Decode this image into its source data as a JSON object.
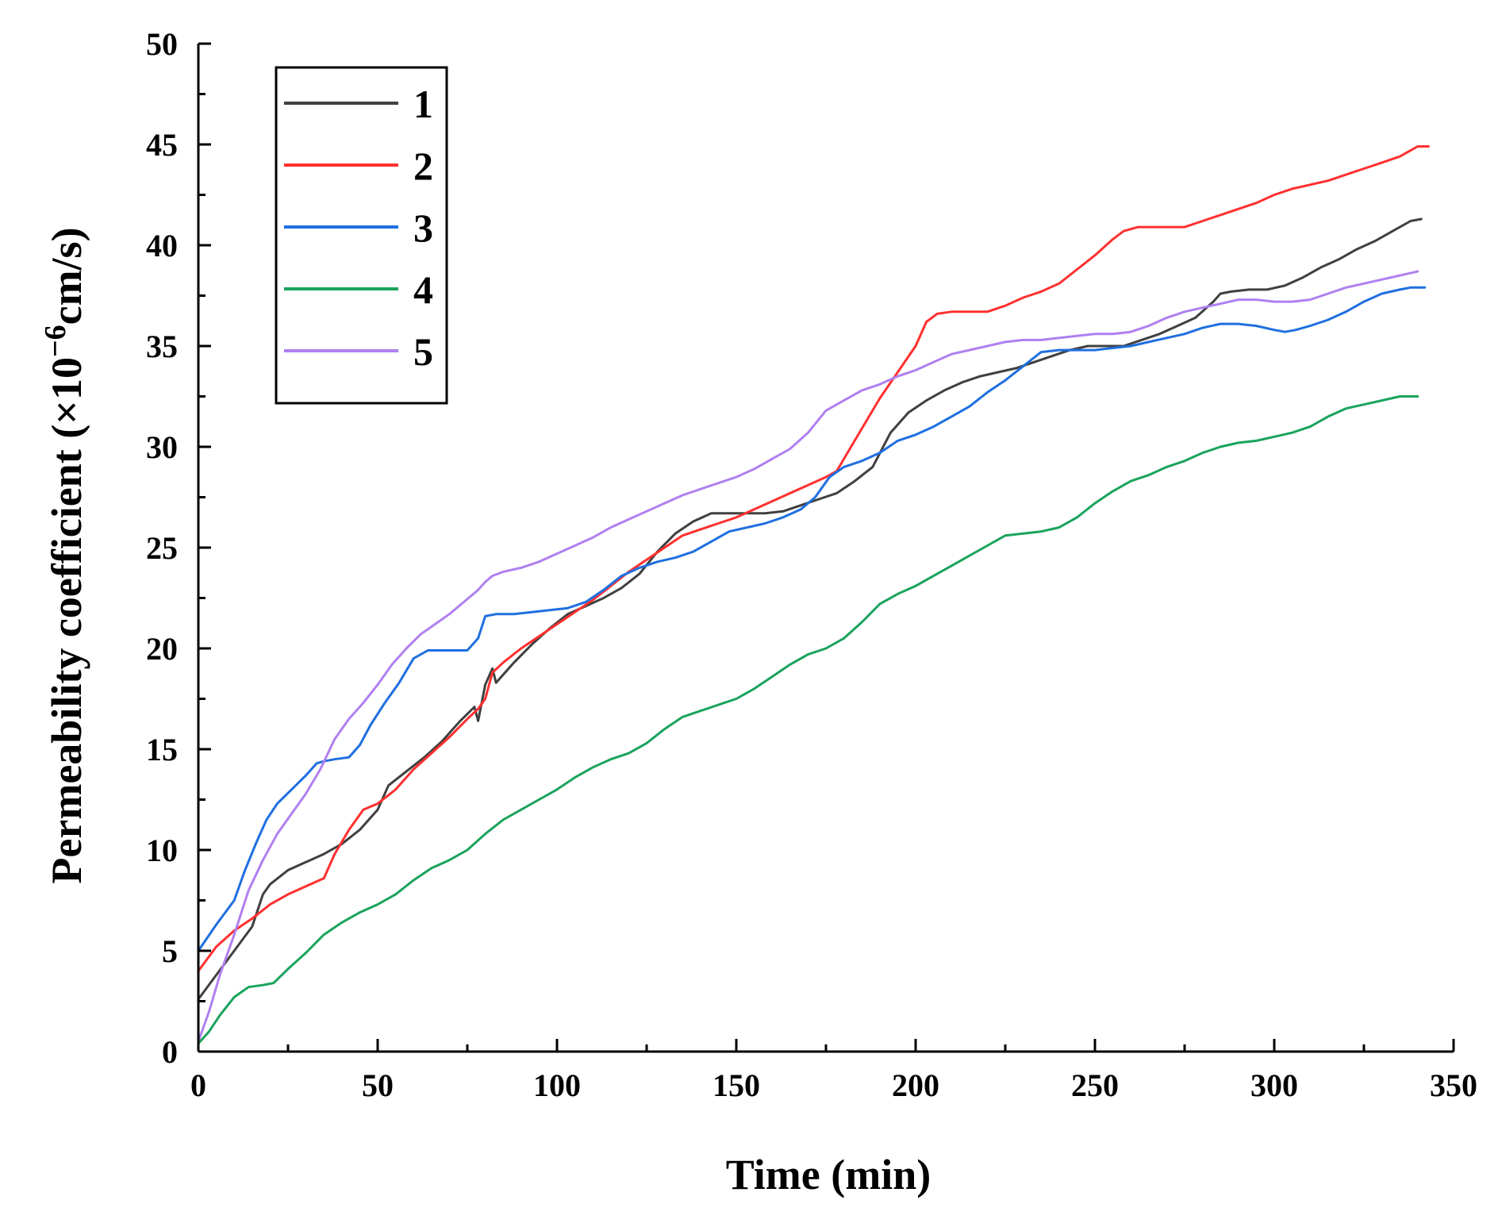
{
  "chart_data": {
    "type": "line",
    "title": "",
    "xlabel": "Time (min)",
    "ylabel_main": "Permeability coefficient (×10",
    "ylabel_exp": "−6",
    "ylabel_unit": "cm/s)",
    "xlim": [
      0,
      350
    ],
    "ylim": [
      0,
      50
    ],
    "xticks": [
      "0",
      "50",
      "100",
      "150",
      "200",
      "250",
      "300",
      "350"
    ],
    "xtick_values": [
      0,
      50,
      100,
      150,
      200,
      250,
      300,
      350
    ],
    "yticks": [
      "0",
      "5",
      "10",
      "15",
      "20",
      "25",
      "30",
      "35",
      "40",
      "45",
      "50"
    ],
    "ytick_values": [
      0,
      5,
      10,
      15,
      20,
      25,
      30,
      35,
      40,
      45,
      50
    ],
    "grid": false,
    "legend_position": "top-left",
    "series": [
      {
        "name": "1",
        "color": "#404040",
        "x": [
          0,
          5,
          10,
          15,
          18,
          20,
          25,
          30,
          35,
          40,
          45,
          50,
          53,
          58,
          63,
          68,
          73,
          77,
          78,
          80,
          82,
          83,
          88,
          93,
          98,
          103,
          108,
          113,
          118,
          123,
          128,
          133,
          138,
          143,
          148,
          153,
          158,
          163,
          168,
          173,
          178,
          183,
          188,
          193,
          198,
          203,
          208,
          213,
          218,
          223,
          228,
          233,
          238,
          243,
          248,
          253,
          258,
          263,
          268,
          273,
          278,
          283,
          285,
          288,
          293,
          298,
          303,
          308,
          313,
          318,
          323,
          328,
          333,
          338,
          341
        ],
        "y": [
          2.6,
          3.8,
          5.0,
          6.2,
          7.8,
          8.3,
          9.0,
          9.4,
          9.8,
          10.3,
          11.0,
          12.0,
          13.2,
          13.9,
          14.6,
          15.4,
          16.4,
          17.1,
          16.4,
          18.2,
          19.0,
          18.3,
          19.3,
          20.2,
          21.0,
          21.7,
          22.1,
          22.5,
          23.0,
          23.7,
          24.8,
          25.7,
          26.3,
          26.7,
          26.7,
          26.7,
          26.7,
          26.8,
          27.1,
          27.4,
          27.7,
          28.3,
          29.0,
          30.7,
          31.7,
          32.3,
          32.8,
          33.2,
          33.5,
          33.7,
          33.9,
          34.2,
          34.5,
          34.8,
          35.0,
          35.0,
          35.0,
          35.3,
          35.6,
          36.0,
          36.4,
          37.2,
          37.6,
          37.7,
          37.8,
          37.8,
          38.0,
          38.4,
          38.9,
          39.3,
          39.8,
          40.2,
          40.7,
          41.2,
          41.3
        ]
      },
      {
        "name": "2",
        "color": "#ff3030",
        "x": [
          0,
          5,
          10,
          15,
          20,
          25,
          30,
          35,
          38,
          42,
          46,
          50,
          55,
          60,
          65,
          70,
          75,
          78,
          80,
          82,
          85,
          90,
          95,
          100,
          105,
          110,
          115,
          120,
          125,
          130,
          135,
          140,
          145,
          150,
          155,
          160,
          165,
          170,
          175,
          178,
          182,
          186,
          190,
          195,
          200,
          203,
          206,
          210,
          215,
          220,
          225,
          230,
          235,
          240,
          245,
          250,
          255,
          258,
          262,
          266,
          270,
          275,
          280,
          285,
          290,
          295,
          300,
          305,
          310,
          315,
          320,
          325,
          330,
          335,
          338,
          340,
          343
        ],
        "y": [
          4.0,
          5.2,
          6.0,
          6.6,
          7.3,
          7.8,
          8.2,
          8.6,
          9.8,
          11.0,
          12.0,
          12.3,
          13.0,
          14.0,
          14.8,
          15.6,
          16.5,
          17.0,
          17.5,
          18.8,
          19.3,
          20.0,
          20.6,
          21.2,
          21.8,
          22.4,
          23.1,
          23.8,
          24.4,
          25.0,
          25.6,
          25.9,
          26.2,
          26.5,
          26.9,
          27.3,
          27.7,
          28.1,
          28.5,
          28.8,
          30.0,
          31.2,
          32.4,
          33.7,
          35.0,
          36.2,
          36.6,
          36.7,
          36.7,
          36.7,
          37.0,
          37.4,
          37.7,
          38.1,
          38.8,
          39.5,
          40.3,
          40.7,
          40.9,
          40.9,
          40.9,
          40.9,
          41.2,
          41.5,
          41.8,
          42.1,
          42.5,
          42.8,
          43.0,
          43.2,
          43.5,
          43.8,
          44.1,
          44.4,
          44.7,
          44.9,
          44.9
        ]
      },
      {
        "name": "3",
        "color": "#1f6fe0",
        "x": [
          0,
          5,
          10,
          13,
          16,
          19,
          22,
          26,
          30,
          33,
          35,
          38,
          42,
          45,
          48,
          52,
          56,
          60,
          64,
          68,
          72,
          75,
          78,
          80,
          83,
          88,
          93,
          98,
          103,
          108,
          113,
          118,
          123,
          128,
          133,
          138,
          143,
          148,
          153,
          158,
          163,
          168,
          172,
          176,
          180,
          185,
          190,
          195,
          200,
          205,
          210,
          215,
          220,
          225,
          230,
          235,
          240,
          243,
          247,
          250,
          255,
          260,
          265,
          270,
          275,
          280,
          285,
          290,
          295,
          300,
          303,
          306,
          310,
          315,
          320,
          325,
          330,
          335,
          338,
          342
        ],
        "y": [
          5.0,
          6.3,
          7.5,
          9.0,
          10.3,
          11.5,
          12.3,
          13.0,
          13.7,
          14.3,
          14.4,
          14.5,
          14.6,
          15.2,
          16.2,
          17.3,
          18.3,
          19.5,
          19.9,
          19.9,
          19.9,
          19.9,
          20.5,
          21.6,
          21.7,
          21.7,
          21.8,
          21.9,
          22.0,
          22.3,
          22.9,
          23.6,
          24.0,
          24.3,
          24.5,
          24.8,
          25.3,
          25.8,
          26.0,
          26.2,
          26.5,
          26.9,
          27.5,
          28.5,
          29.0,
          29.3,
          29.7,
          30.3,
          30.6,
          31.0,
          31.5,
          32.0,
          32.7,
          33.3,
          34.0,
          34.7,
          34.8,
          34.8,
          34.8,
          34.8,
          34.9,
          35.0,
          35.2,
          35.4,
          35.6,
          35.9,
          36.1,
          36.1,
          36.0,
          35.8,
          35.7,
          35.8,
          36.0,
          36.3,
          36.7,
          37.2,
          37.6,
          37.8,
          37.9,
          37.9
        ]
      },
      {
        "name": "4",
        "color": "#1aa35c",
        "x": [
          0,
          3,
          6,
          10,
          14,
          18,
          21,
          25,
          30,
          35,
          40,
          45,
          50,
          55,
          60,
          65,
          70,
          75,
          80,
          85,
          90,
          95,
          100,
          105,
          110,
          115,
          120,
          125,
          130,
          135,
          140,
          145,
          150,
          155,
          160,
          165,
          170,
          175,
          180,
          185,
          190,
          195,
          200,
          205,
          210,
          215,
          220,
          225,
          230,
          235,
          240,
          245,
          250,
          255,
          260,
          265,
          270,
          275,
          280,
          285,
          290,
          295,
          300,
          305,
          310,
          315,
          320,
          325,
          330,
          335,
          340
        ],
        "y": [
          0.4,
          1.0,
          1.8,
          2.7,
          3.2,
          3.3,
          3.4,
          4.1,
          4.9,
          5.8,
          6.4,
          6.9,
          7.3,
          7.8,
          8.5,
          9.1,
          9.5,
          10.0,
          10.8,
          11.5,
          12.0,
          12.5,
          13.0,
          13.6,
          14.1,
          14.5,
          14.8,
          15.3,
          16.0,
          16.6,
          16.9,
          17.2,
          17.5,
          18.0,
          18.6,
          19.2,
          19.7,
          20.0,
          20.5,
          21.3,
          22.2,
          22.7,
          23.1,
          23.6,
          24.1,
          24.6,
          25.1,
          25.6,
          25.7,
          25.8,
          26.0,
          26.5,
          27.2,
          27.8,
          28.3,
          28.6,
          29.0,
          29.3,
          29.7,
          30.0,
          30.2,
          30.3,
          30.5,
          30.7,
          31.0,
          31.5,
          31.9,
          32.1,
          32.3,
          32.5,
          32.5
        ]
      },
      {
        "name": "5",
        "color": "#b080f0",
        "x": [
          0,
          3,
          6,
          10,
          14,
          18,
          22,
          26,
          30,
          34,
          38,
          42,
          46,
          50,
          54,
          58,
          62,
          66,
          70,
          74,
          78,
          80,
          82,
          85,
          90,
          95,
          100,
          105,
          110,
          115,
          120,
          125,
          130,
          135,
          140,
          145,
          150,
          155,
          160,
          165,
          170,
          175,
          180,
          185,
          190,
          195,
          200,
          205,
          210,
          215,
          220,
          225,
          230,
          235,
          240,
          245,
          250,
          255,
          260,
          265,
          270,
          275,
          280,
          285,
          290,
          295,
          300,
          305,
          310,
          315,
          320,
          325,
          330,
          335,
          340
        ],
        "y": [
          0.5,
          2.0,
          3.8,
          5.8,
          8.0,
          9.5,
          10.8,
          11.8,
          12.8,
          14.0,
          15.5,
          16.5,
          17.3,
          18.2,
          19.2,
          20.0,
          20.7,
          21.2,
          21.7,
          22.3,
          22.9,
          23.3,
          23.6,
          23.8,
          24.0,
          24.3,
          24.7,
          25.1,
          25.5,
          26.0,
          26.4,
          26.8,
          27.2,
          27.6,
          27.9,
          28.2,
          28.5,
          28.9,
          29.4,
          29.9,
          30.7,
          31.8,
          32.3,
          32.8,
          33.1,
          33.5,
          33.8,
          34.2,
          34.6,
          34.8,
          35.0,
          35.2,
          35.3,
          35.3,
          35.4,
          35.5,
          35.6,
          35.6,
          35.7,
          36.0,
          36.4,
          36.7,
          36.9,
          37.1,
          37.3,
          37.3,
          37.2,
          37.2,
          37.3,
          37.6,
          37.9,
          38.1,
          38.3,
          38.5,
          38.7
        ]
      }
    ]
  }
}
